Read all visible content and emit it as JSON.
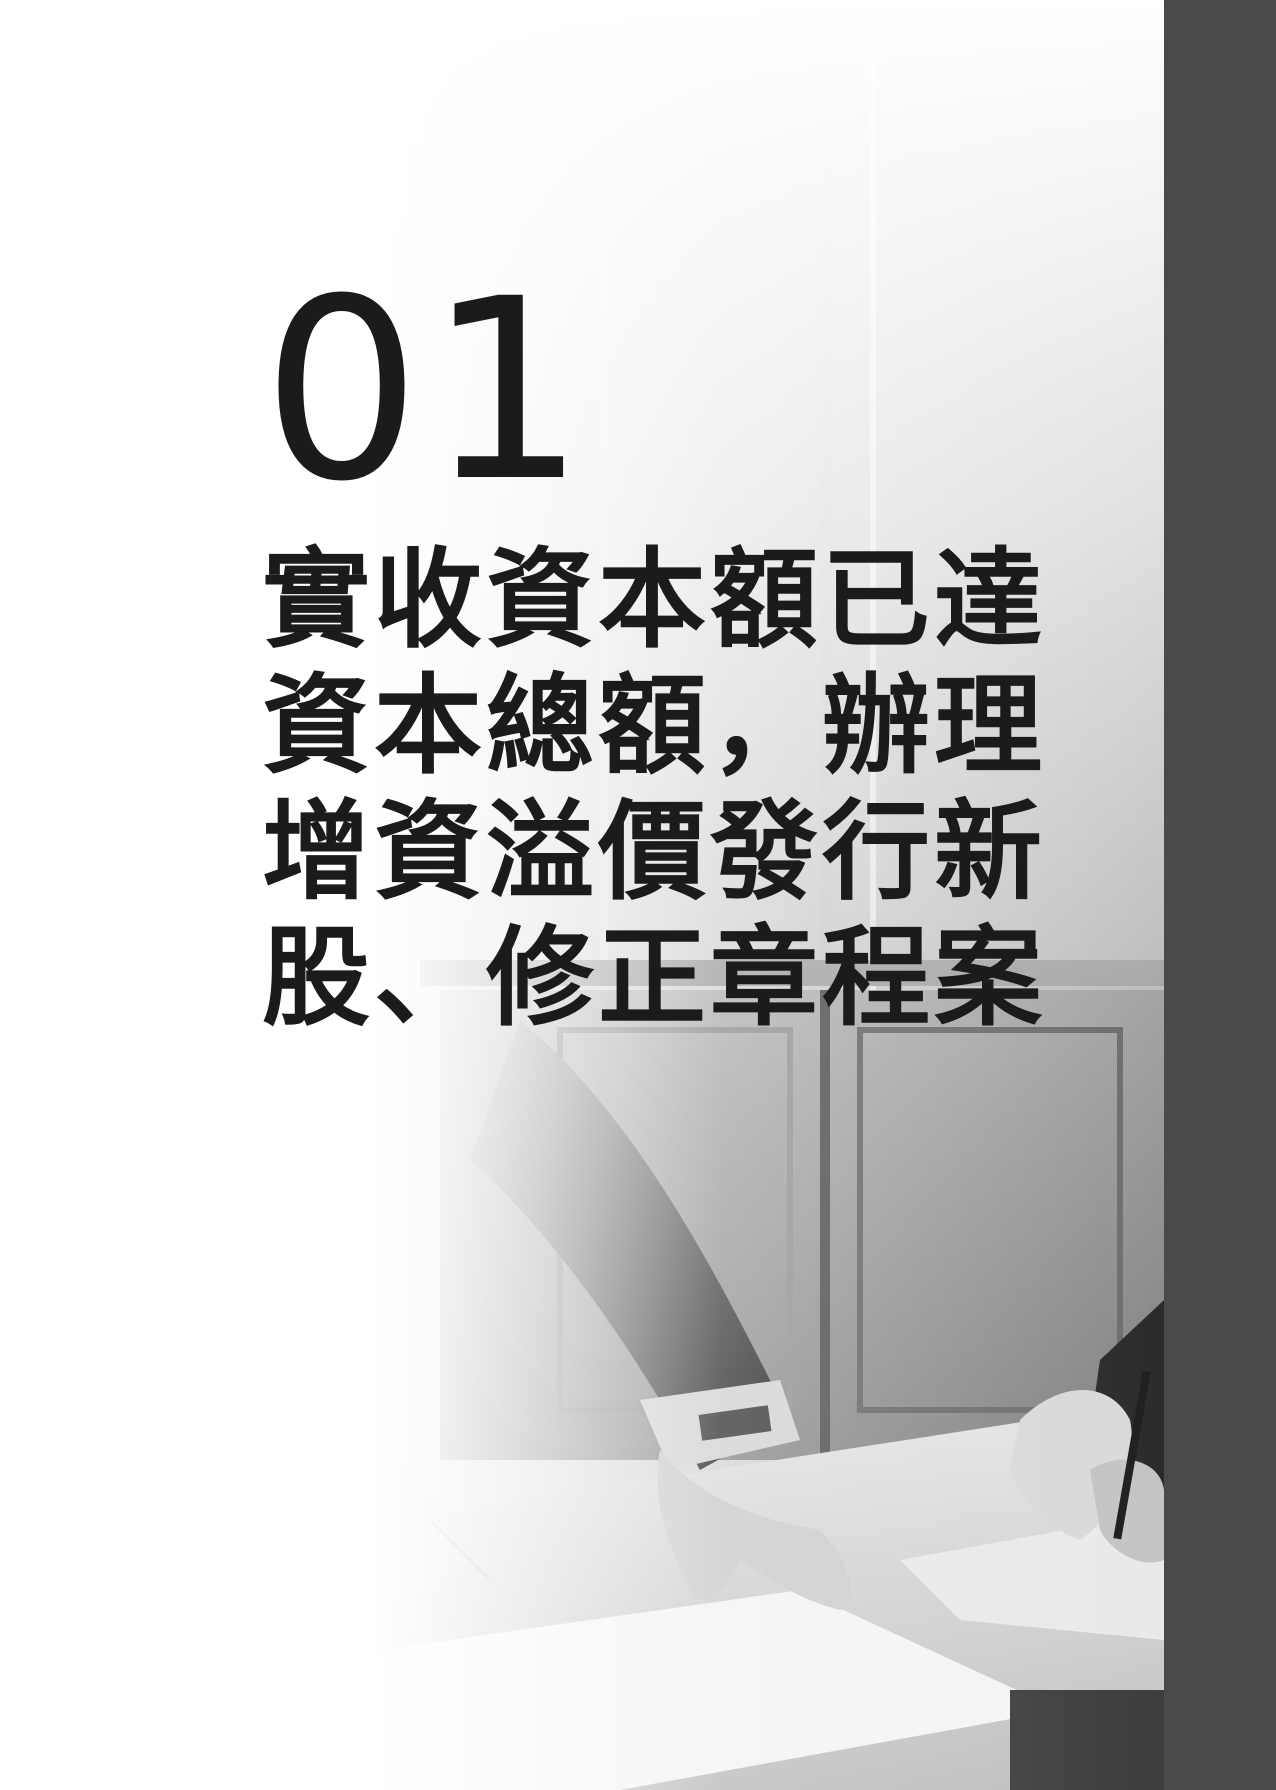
{
  "chapter": {
    "number": "01",
    "title_lines": [
      "實收資本額已達",
      "資本總額，辦理",
      "增資溢價發行新",
      "股、修正章程案"
    ]
  },
  "colors": {
    "side_bar": "#4a494b",
    "text": "#1b1b1b",
    "background": "#ffffff"
  },
  "illustration": {
    "subject": "business-meeting-hands-signing-documents"
  }
}
